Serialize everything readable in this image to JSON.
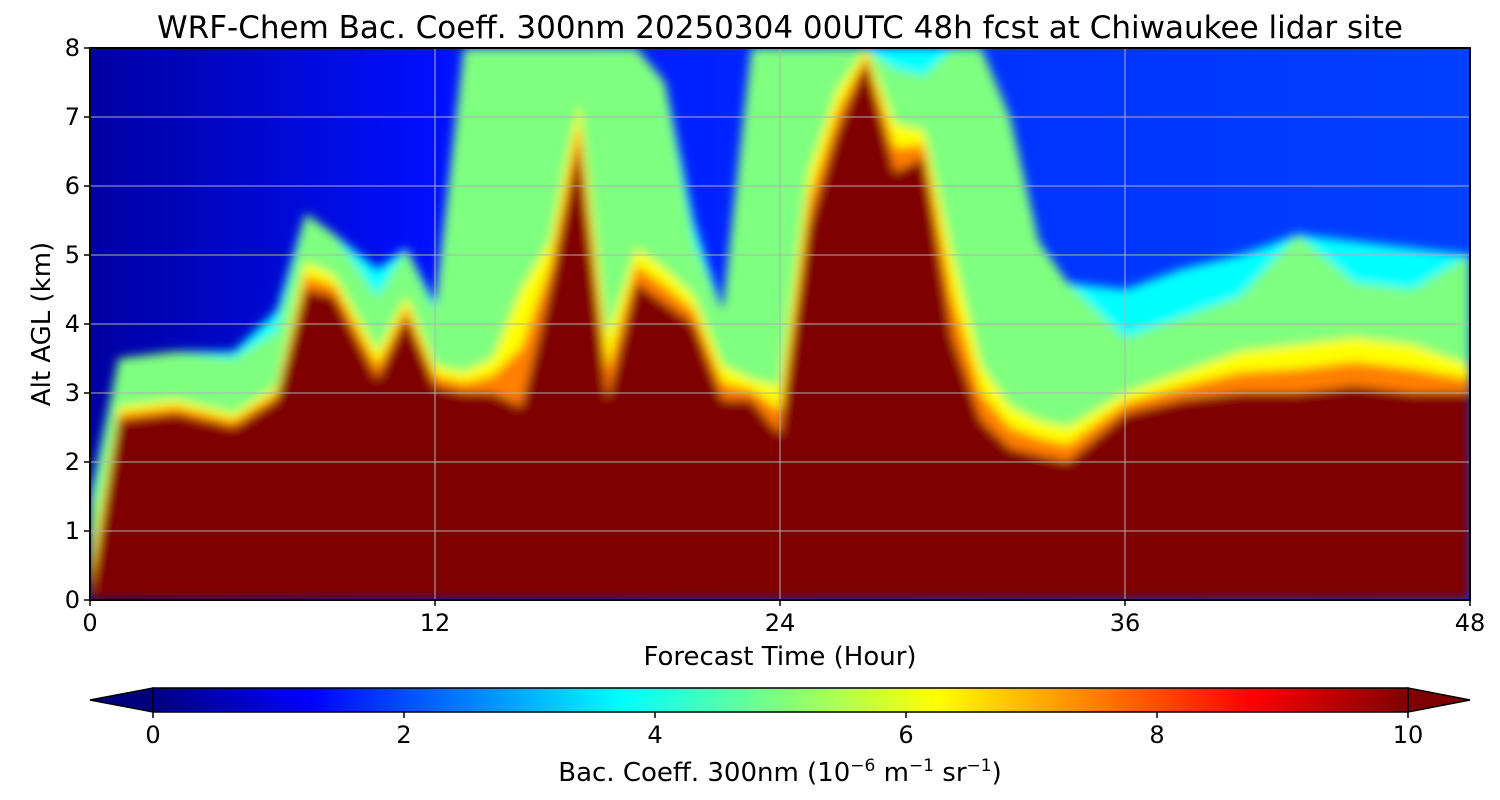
{
  "chart_data": {
    "type": "heatmap",
    "title": "WRF-Chem Bac. Coeff. 300nm  20250304 00UTC 48h fcst at Chiwaukee lidar site",
    "xlabel": "Forecast Time (Hour)",
    "ylabel": "Alt AGL (km)",
    "xlim": [
      0,
      48
    ],
    "ylim": [
      0,
      8
    ],
    "xticks": [
      "0",
      "12",
      "24",
      "36",
      "48"
    ],
    "yticks": [
      "0",
      "1",
      "2",
      "3",
      "4",
      "5",
      "6",
      "7",
      "8"
    ],
    "grid": true,
    "colorbar": {
      "label_prefix": "Bac. Coeff. 300nm  (10",
      "label_exp1": "−6",
      "label_mid": " m",
      "label_exp2": "−1",
      "label_mid2": " sr",
      "label_exp3": "−1",
      "label_suffix": ")",
      "range": [
        0,
        10
      ],
      "ticks": [
        "0",
        "2",
        "4",
        "6",
        "8",
        "10"
      ],
      "extend": "both",
      "colormap": "jet",
      "colors": [
        "#00007f",
        "#0000ff",
        "#007fff",
        "#00ffff",
        "#7fff7f",
        "#ffff00",
        "#ff7f00",
        "#ff0000",
        "#7f0000"
      ]
    },
    "series_note": "Estimated backscatter coefficient field; columns are forecast hours, boundary heights in km AGL",
    "hours": [
      0,
      1,
      3,
      5,
      6.5,
      7.5,
      8.5,
      10,
      11,
      12,
      13,
      14,
      15,
      16,
      17,
      18,
      19,
      20,
      21,
      22,
      23,
      24,
      25,
      26,
      27,
      28,
      29,
      30,
      31,
      32,
      33,
      34,
      36,
      38,
      40,
      42,
      44,
      46,
      48
    ],
    "saturated_top_km": [
      0.0,
      2.6,
      2.7,
      2.5,
      2.9,
      4.5,
      4.4,
      3.2,
      4.1,
      3.1,
      3.0,
      3.0,
      2.8,
      4.5,
      6.6,
      2.9,
      4.6,
      4.3,
      4.0,
      2.9,
      2.9,
      2.4,
      5.4,
      6.8,
      7.8,
      6.2,
      6.4,
      3.8,
      2.6,
      2.2,
      2.1,
      2.0,
      2.7,
      2.9,
      3.0,
      3.0,
      3.1,
      3.0,
      3.0
    ],
    "yellow_top_km": [
      0.5,
      2.8,
      2.9,
      2.7,
      3.1,
      4.9,
      4.7,
      3.6,
      4.4,
      3.4,
      3.3,
      3.5,
      4.5,
      5.2,
      7.2,
      3.8,
      5.1,
      4.8,
      4.4,
      3.4,
      3.2,
      3.1,
      6.2,
      7.4,
      8.0,
      6.9,
      6.8,
      5.0,
      3.4,
      2.8,
      2.6,
      2.5,
      3.0,
      3.3,
      3.6,
      3.7,
      3.8,
      3.7,
      3.4
    ],
    "aerosol_top_km": [
      1.5,
      3.5,
      3.6,
      3.6,
      4.2,
      5.6,
      5.3,
      4.8,
      5.1,
      4.3,
      8.0,
      8.0,
      8.0,
      8.0,
      8.0,
      8.0,
      8.0,
      7.5,
      5.5,
      4.2,
      8.0,
      8.0,
      8.0,
      8.0,
      8.0,
      8.0,
      8.0,
      8.0,
      8.0,
      7.0,
      5.2,
      4.6,
      4.5,
      4.8,
      5.0,
      5.3,
      5.2,
      5.1,
      5.0
    ]
  }
}
